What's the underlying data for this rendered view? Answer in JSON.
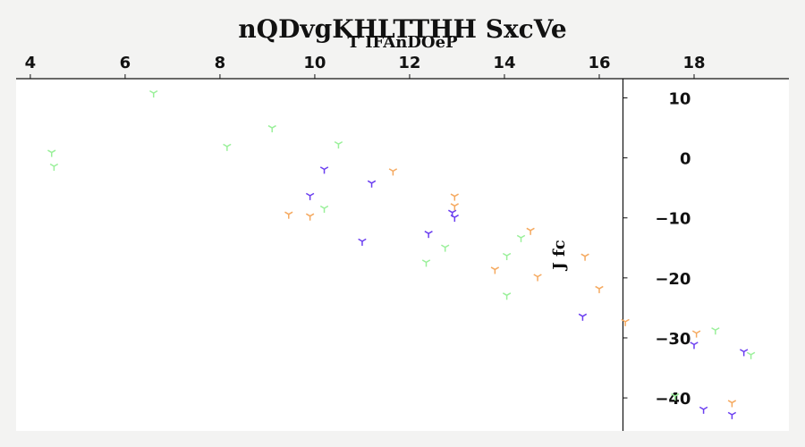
{
  "chart_data": {
    "type": "scatter",
    "title": "nQDvgKHLTTHH SxcVe",
    "xlabel": "T IFAnDOeP",
    "ylabel": "J fc",
    "xlim": [
      3.7,
      20
    ],
    "ylim": [
      -45.5,
      13.2
    ],
    "x_axis_position": "top",
    "y_axis_crosses_at_x": 16.5,
    "x_ticks": [
      4,
      6,
      8,
      10,
      12,
      14,
      16,
      18
    ],
    "x_tick_labels": [
      "4",
      "6",
      "8",
      "10",
      "12",
      "14",
      "16",
      "18"
    ],
    "y_ticks": [
      10,
      0,
      -10,
      -20,
      -30,
      -40
    ],
    "y_tick_labels": [
      "10",
      "0",
      "−10",
      "−20",
      "−30",
      "−40"
    ],
    "grid": false,
    "marker": "tri_down",
    "series": [
      {
        "color": "#9af09a",
        "points": [
          [
            4.45,
            0.9
          ],
          [
            4.5,
            -1.4
          ],
          [
            6.6,
            10.8
          ],
          [
            8.15,
            1.9
          ],
          [
            9.1,
            5.0
          ],
          [
            10.2,
            -8.4
          ],
          [
            10.5,
            2.3
          ],
          [
            12.35,
            -17.4
          ],
          [
            12.75,
            -14.9
          ],
          [
            14.05,
            -16.3
          ],
          [
            14.05,
            -22.9
          ],
          [
            14.35,
            -13.3
          ],
          [
            17.6,
            -39.7
          ],
          [
            18.45,
            -28.7
          ],
          [
            19.2,
            -32.8
          ]
        ]
      },
      {
        "color": "#6b3ff0",
        "points": [
          [
            9.9,
            -6.3
          ],
          [
            10.2,
            -1.9
          ],
          [
            11.0,
            -13.9
          ],
          [
            11.2,
            -4.2
          ],
          [
            12.4,
            -12.6
          ],
          [
            12.9,
            -9.1
          ],
          [
            12.95,
            -9.9
          ],
          [
            15.65,
            -26.4
          ],
          [
            18.0,
            -31.1
          ],
          [
            18.2,
            -41.9
          ],
          [
            18.8,
            -42.8
          ],
          [
            19.05,
            -32.3
          ]
        ]
      },
      {
        "color": "#f5a95f",
        "points": [
          [
            9.45,
            -9.4
          ],
          [
            9.9,
            -9.7
          ],
          [
            11.65,
            -2.2
          ],
          [
            12.95,
            -6.4
          ],
          [
            12.95,
            -8.0
          ],
          [
            13.8,
            -18.6
          ],
          [
            14.55,
            -12.1
          ],
          [
            14.7,
            -19.8
          ],
          [
            15.7,
            -16.4
          ],
          [
            16.0,
            -21.8
          ],
          [
            16.55,
            -27.3
          ],
          [
            18.05,
            -29.2
          ],
          [
            18.8,
            -40.8
          ]
        ]
      }
    ]
  }
}
